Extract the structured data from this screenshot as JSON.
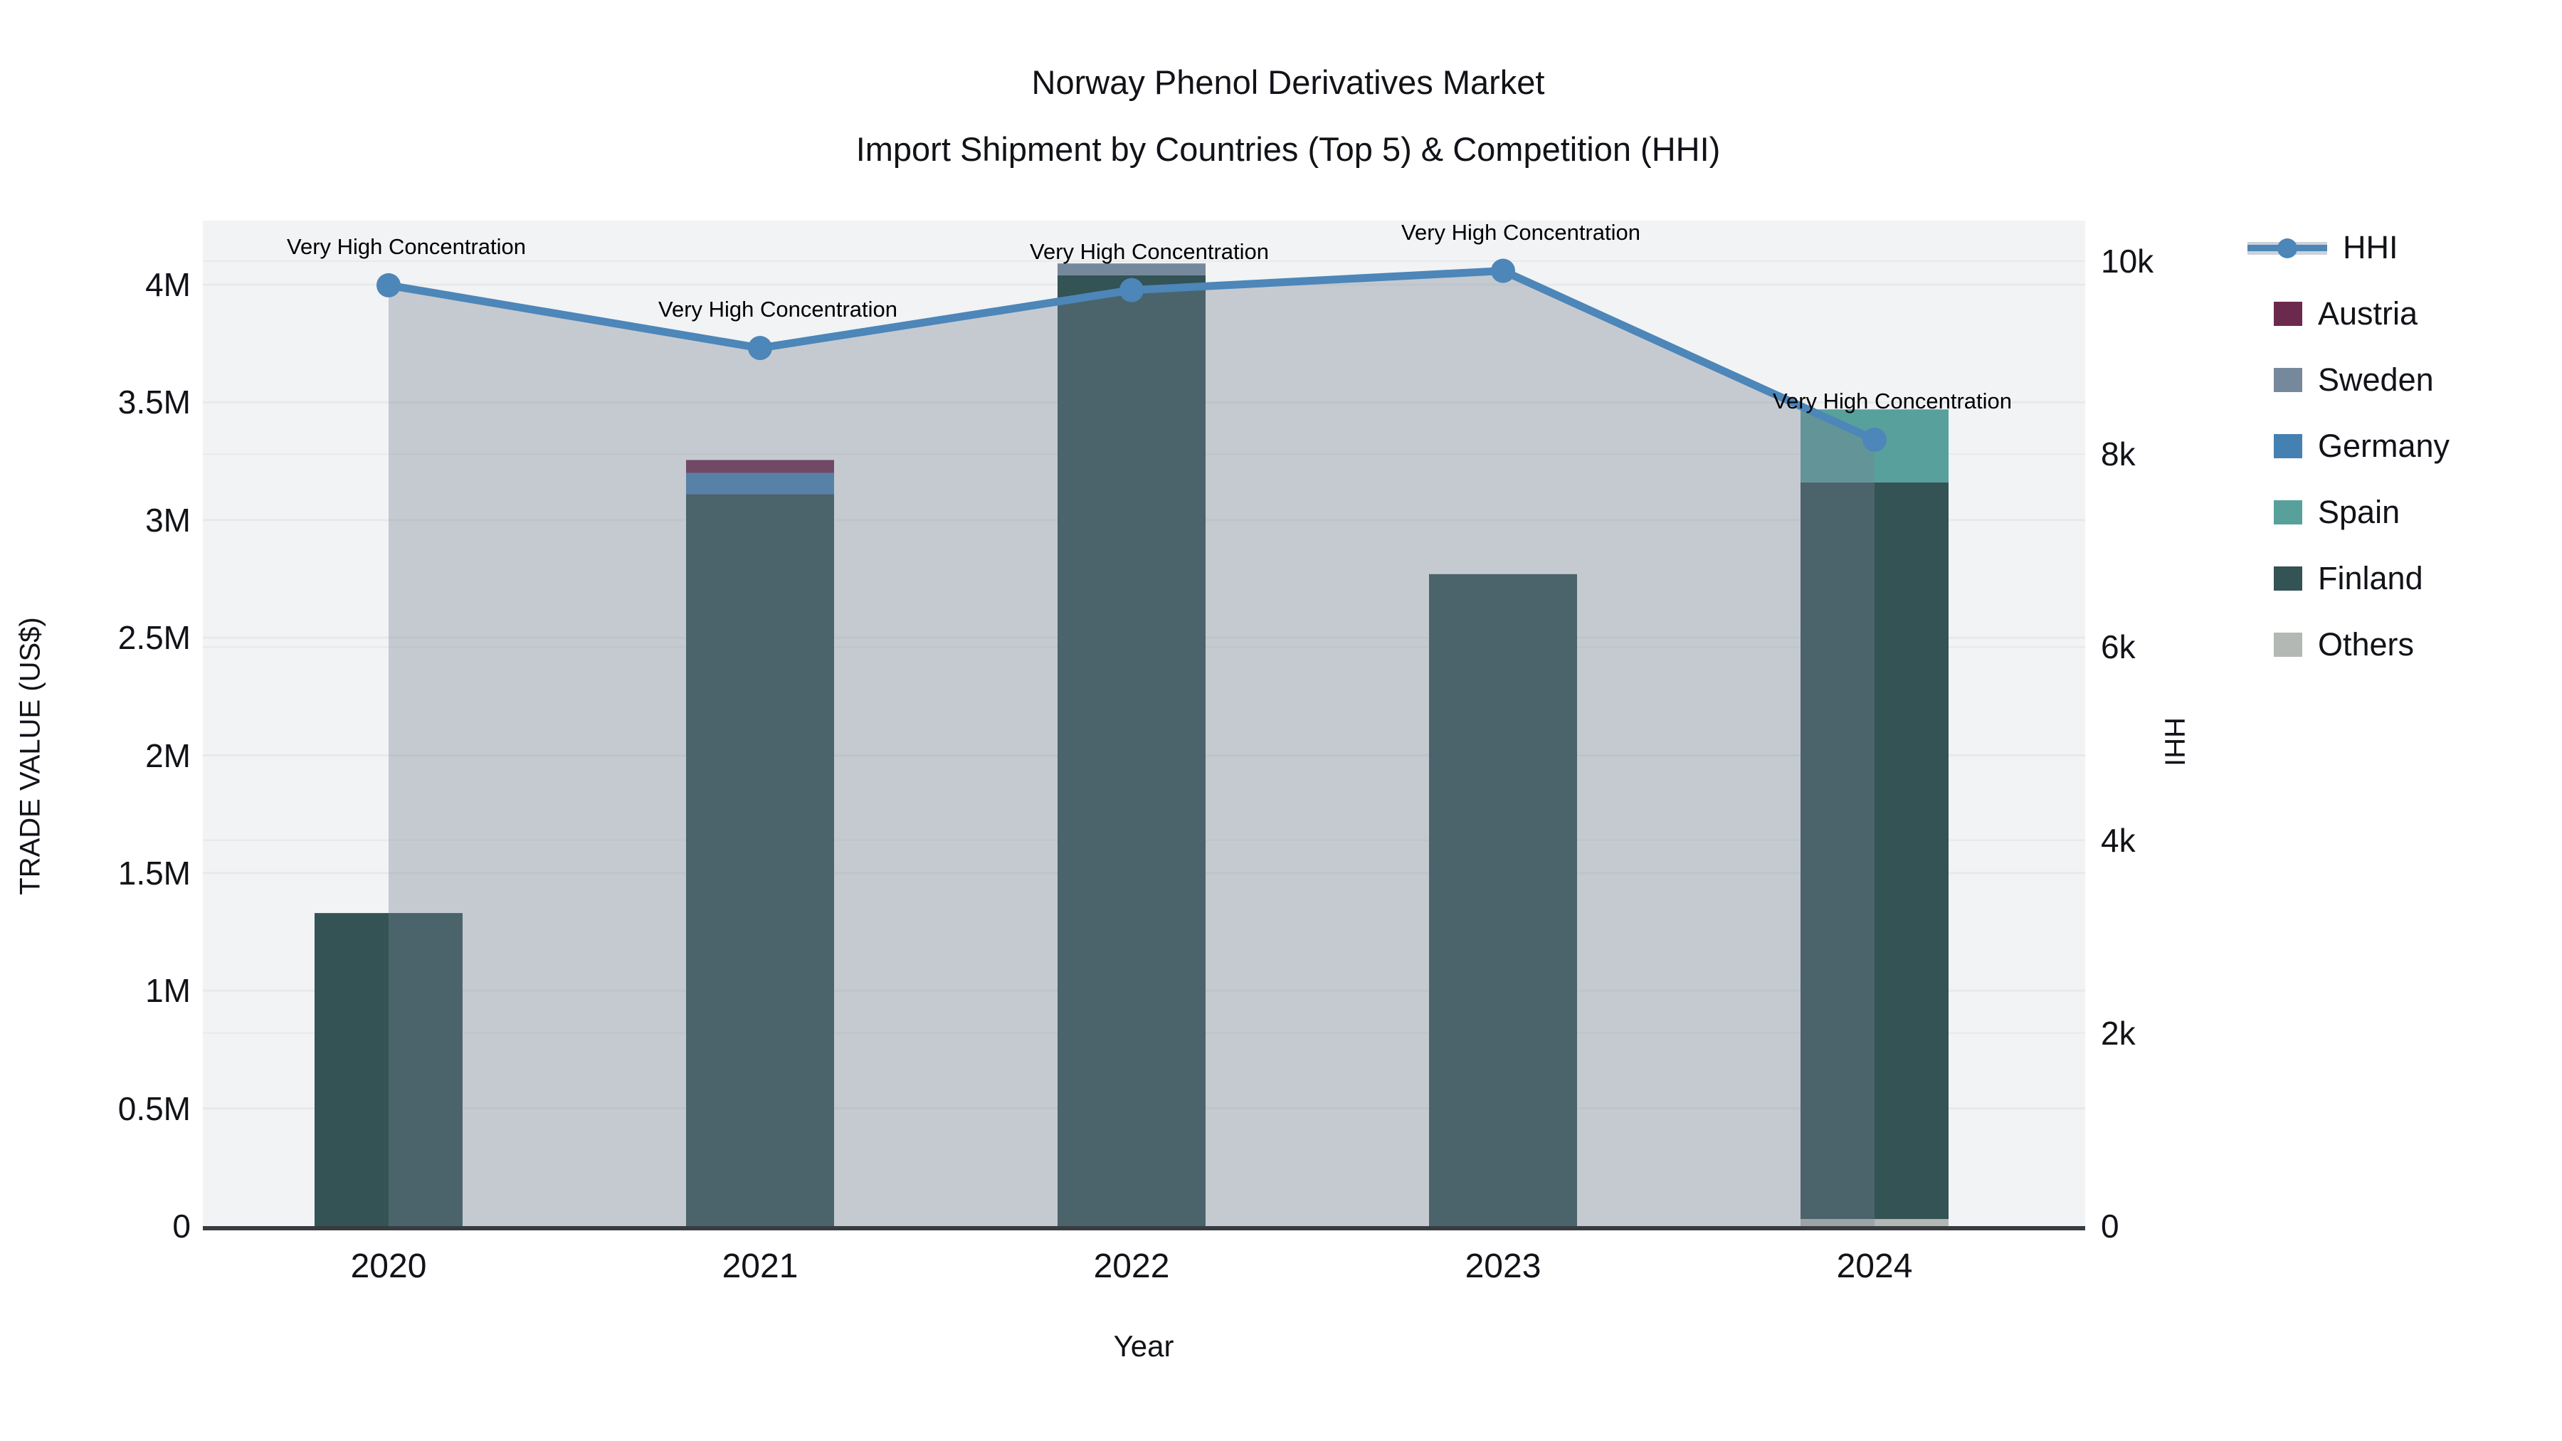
{
  "title": {
    "line1": "Norway Phenol Derivatives Market",
    "line2": "Import Shipment by Countries (Top 5) & Competition (HHI)"
  },
  "axes": {
    "y_left_title": "TRADE VALUE (US$)",
    "y_right_title": "HHI",
    "x_title": "Year"
  },
  "legend": {
    "items": [
      {
        "label": "HHI",
        "type": "line",
        "color": "#4d86b8"
      },
      {
        "label": "Austria",
        "type": "box",
        "color": "#6b2a4d"
      },
      {
        "label": "Sweden",
        "type": "box",
        "color": "#76889c"
      },
      {
        "label": "Germany",
        "type": "box",
        "color": "#4580b2"
      },
      {
        "label": "Spain",
        "type": "box",
        "color": "#58a09c"
      },
      {
        "label": "Finland",
        "type": "box",
        "color": "#335355"
      },
      {
        "label": "Others",
        "type": "box",
        "color": "#b3b8b4"
      }
    ]
  },
  "chart_data": {
    "type": "combo: stacked bar (left axis) + line with area fill (right axis)",
    "categories": [
      "2020",
      "2021",
      "2022",
      "2023",
      "2024"
    ],
    "bar_value_unit": "million US$",
    "series": [
      {
        "name": "Others",
        "color": "#b3b8b4",
        "values": [
          0,
          0,
          0,
          0,
          0.03
        ]
      },
      {
        "name": "Finland",
        "color": "#335355",
        "values": [
          1.33,
          3.11,
          4.04,
          2.77,
          3.13
        ]
      },
      {
        "name": "Spain",
        "color": "#58a09c",
        "values": [
          0,
          0,
          0,
          0,
          0.31
        ]
      },
      {
        "name": "Germany",
        "color": "#4580b2",
        "values": [
          0,
          0.09,
          0,
          0,
          0
        ]
      },
      {
        "name": "Sweden",
        "color": "#76889c",
        "values": [
          0,
          0,
          0.05,
          0,
          0
        ]
      },
      {
        "name": "Austria",
        "color": "#6b2a4d",
        "values": [
          0,
          0.055,
          0,
          0,
          0
        ]
      }
    ],
    "line": {
      "name": "HHI",
      "color": "#4d86b8",
      "fill_color": "rgba(119,131,146,0.36)",
      "values": [
        9750,
        9100,
        9700,
        9900,
        8150
      ]
    },
    "annotation_text": "Very High Concentration",
    "y_left": {
      "label": "TRADE VALUE (US$)",
      "tick_values_m": [
        0,
        0.5,
        1,
        1.5,
        2,
        2.5,
        3,
        3.5,
        4
      ],
      "tick_labels": [
        "0",
        "0.5M",
        "1M",
        "1.5M",
        "2M",
        "2.5M",
        "3M",
        "3.5M",
        "4M"
      ],
      "range_m": [
        0,
        4.27
      ]
    },
    "y_right": {
      "label": "HHI",
      "tick_values": [
        0,
        2000,
        4000,
        6000,
        8000,
        10000
      ],
      "tick_labels": [
        "0",
        "2k",
        "4k",
        "6k",
        "8k",
        "10k"
      ],
      "range": [
        0,
        10420
      ]
    },
    "xlabel": "Year",
    "grid": true,
    "legend_position": "right",
    "plot_bg": "#f1f3f4",
    "grid_color": "#e7e9eb",
    "axis_line_color": "#383c40"
  }
}
